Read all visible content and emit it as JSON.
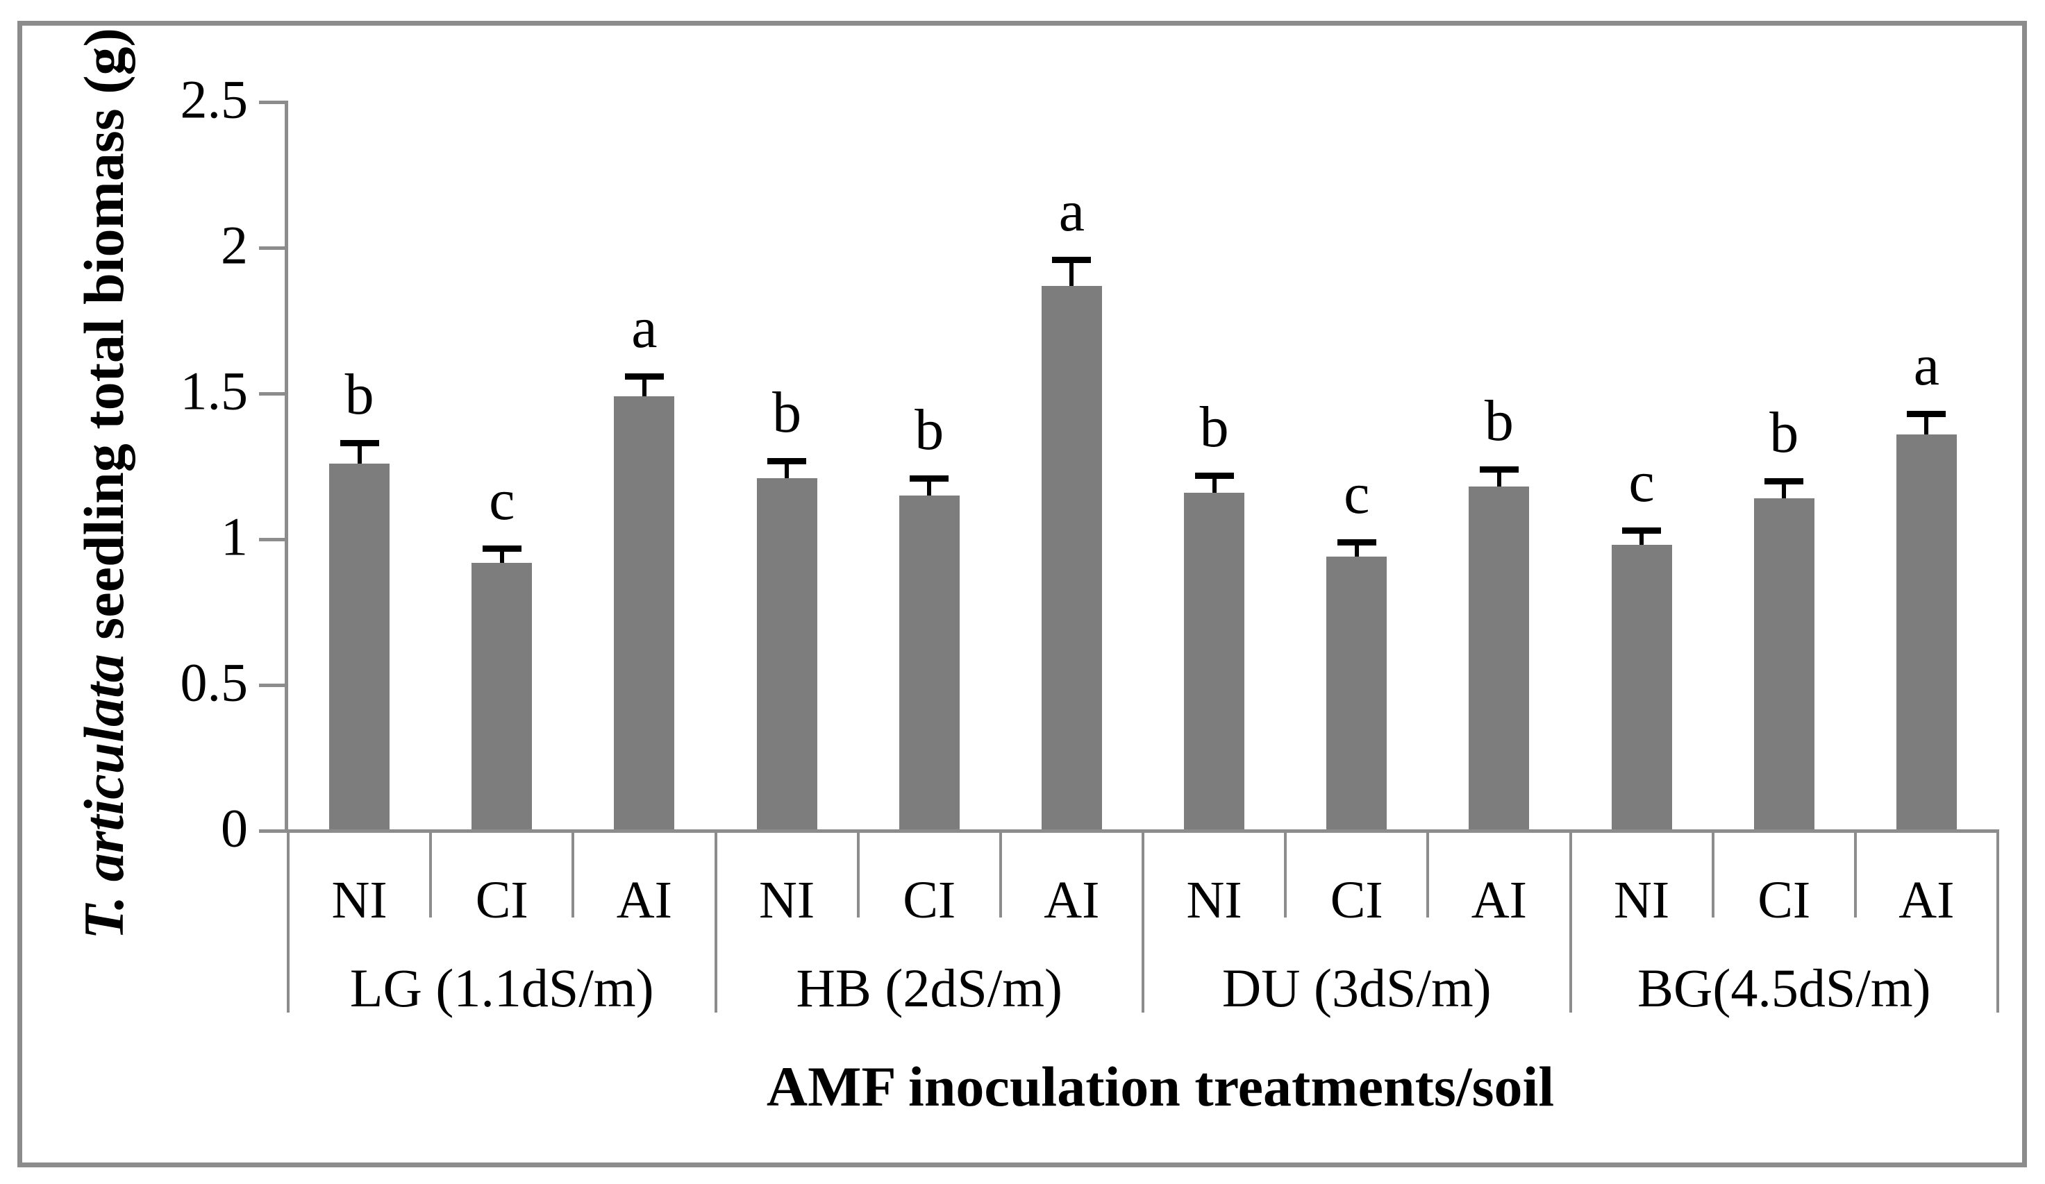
{
  "figure": {
    "background_color": "#ffffff",
    "border_color": "#8c8c8c"
  },
  "chart_data": {
    "type": "bar",
    "xlabel": "AMF inoculation treatments/soil",
    "ylabel_italic": "T. articulata",
    "ylabel_rest": " seedling total biomass (g)",
    "ylim": [
      0,
      2.5
    ],
    "yticks": [
      0,
      0.5,
      1,
      1.5,
      2,
      2.5
    ],
    "ytick_labels": [
      "0",
      "0.5",
      "1",
      "1.5",
      "2",
      "2.5"
    ],
    "grid": "off",
    "legend": "none",
    "bar_color": "#7d7d7d",
    "axis_color": "#8c8c8c",
    "error_bar_color": "#000000",
    "categories": [
      "LG (1.1dS/m)",
      "HB (2dS/m)",
      "DU (3dS/m)",
      "BG(4.5dS/m)"
    ],
    "sub_categories": [
      "NI",
      "CI",
      "AI"
    ],
    "groups": [
      {
        "label": "LG (1.1dS/m)",
        "bars": [
          {
            "treatment": "NI",
            "value": 1.26,
            "error": 0.07,
            "letter": "b"
          },
          {
            "treatment": "CI",
            "value": 0.92,
            "error": 0.05,
            "letter": "c"
          },
          {
            "treatment": "AI",
            "value": 1.49,
            "error": 0.07,
            "letter": "a"
          }
        ]
      },
      {
        "label": "HB (2dS/m)",
        "bars": [
          {
            "treatment": "NI",
            "value": 1.21,
            "error": 0.06,
            "letter": "b"
          },
          {
            "treatment": "CI",
            "value": 1.15,
            "error": 0.06,
            "letter": "b"
          },
          {
            "treatment": "AI",
            "value": 1.87,
            "error": 0.09,
            "letter": "a"
          }
        ]
      },
      {
        "label": "DU (3dS/m)",
        "bars": [
          {
            "treatment": "NI",
            "value": 1.16,
            "error": 0.06,
            "letter": "b"
          },
          {
            "treatment": "CI",
            "value": 0.94,
            "error": 0.05,
            "letter": "c"
          },
          {
            "treatment": "AI",
            "value": 1.18,
            "error": 0.06,
            "letter": "b"
          }
        ]
      },
      {
        "label": "BG(4.5dS/m)",
        "bars": [
          {
            "treatment": "NI",
            "value": 0.98,
            "error": 0.05,
            "letter": "c"
          },
          {
            "treatment": "CI",
            "value": 1.14,
            "error": 0.06,
            "letter": "b"
          },
          {
            "treatment": "AI",
            "value": 1.36,
            "error": 0.07,
            "letter": "a"
          }
        ]
      }
    ]
  }
}
